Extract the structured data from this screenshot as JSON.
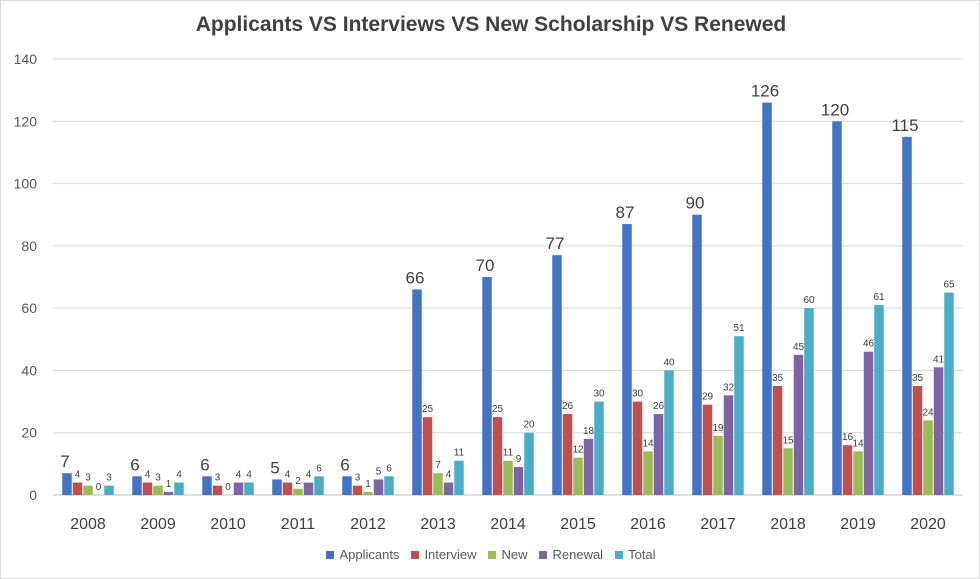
{
  "chart_data": {
    "type": "bar",
    "title": "Applicants VS Interviews VS New Scholarship VS Renewed",
    "xlabel": "",
    "ylabel": "",
    "ylim": [
      0,
      140
    ],
    "yticks": [
      0,
      20,
      40,
      60,
      80,
      100,
      120,
      140
    ],
    "grid": true,
    "legend_position": "bottom",
    "categories": [
      "2008",
      "2009",
      "2010",
      "2011",
      "2012",
      "2013",
      "2014",
      "2015",
      "2016",
      "2017",
      "2018",
      "2019",
      "2020"
    ],
    "series": [
      {
        "name": "Applicants",
        "color": "#4472c4",
        "values": [
          7,
          6,
          6,
          5,
          6,
          66,
          70,
          77,
          87,
          90,
          126,
          120,
          115
        ]
      },
      {
        "name": "Interview",
        "color": "#c0504d",
        "values": [
          4,
          4,
          3,
          4,
          3,
          25,
          25,
          26,
          30,
          29,
          35,
          16,
          35
        ]
      },
      {
        "name": "New",
        "color": "#9bbb59",
        "values": [
          3,
          3,
          0,
          2,
          1,
          7,
          11,
          12,
          14,
          19,
          15,
          14,
          24
        ]
      },
      {
        "name": "Renewal",
        "color": "#8064a2",
        "values": [
          0,
          1,
          4,
          4,
          5,
          4,
          9,
          18,
          26,
          32,
          45,
          46,
          41
        ]
      },
      {
        "name": "Total",
        "color": "#4bacc6",
        "values": [
          3,
          4,
          4,
          6,
          6,
          11,
          20,
          30,
          40,
          51,
          60,
          61,
          65
        ]
      }
    ]
  }
}
